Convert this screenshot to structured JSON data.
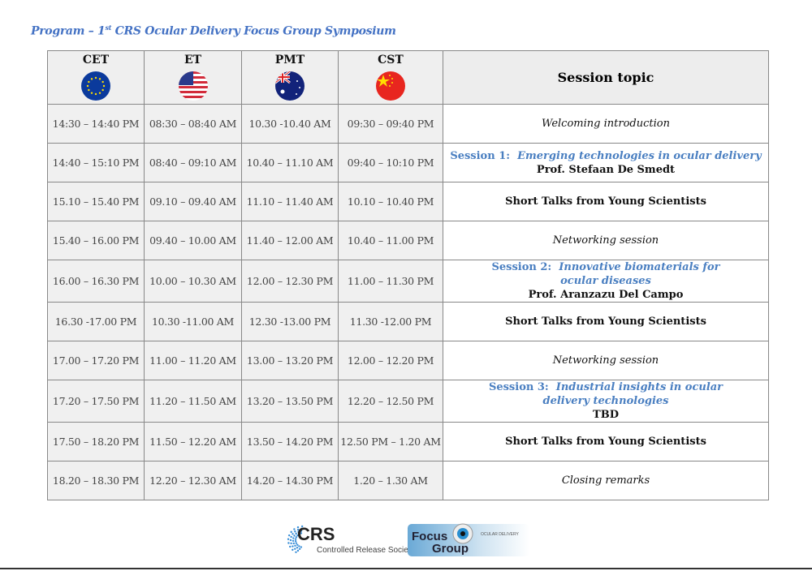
{
  "title": {
    "prefix": "Program – 1",
    "sup": "st",
    "rest": " CRS Ocular Delivery Focus Group Symposium"
  },
  "header": {
    "columns": [
      {
        "label": "CET",
        "icon": "eu-flag-icon"
      },
      {
        "label": "ET",
        "icon": "us-flag-icon"
      },
      {
        "label": "PMT",
        "icon": "australia-flag-icon"
      },
      {
        "label": "CST",
        "icon": "china-flag-icon"
      }
    ],
    "topic": "Session topic"
  },
  "rows": [
    {
      "times": [
        "14:30 – 14:40 PM",
        "08:30 – 08:40 AM",
        "10.30 -10.40 AM",
        "09:30 – 09:40 PM"
      ],
      "topic": "Welcoming introduction"
    },
    {
      "times": [
        "14:40 – 15:10 PM",
        "08:40 – 09:10 AM",
        "10.40 – 11.10 AM",
        "09:40 – 10:10 PM"
      ],
      "session": "Session 1:",
      "session_title": "Emerging technologies in ocular delivery",
      "speaker": "Prof. Stefaan De Smedt"
    },
    {
      "times": [
        "15.10 – 15.40 PM",
        "09.10 – 09.40 AM",
        "11.10  – 11.40 AM",
        "10.10 – 10.40 PM"
      ],
      "topic": "Short Talks from Young Scientists"
    },
    {
      "times": [
        "15.40 – 16.00 PM",
        "09.40 – 10.00 AM",
        "11.40 – 12.00 AM",
        "10.40 – 11.00 PM"
      ],
      "topic": "Networking session"
    },
    {
      "times": [
        "16.00 – 16.30 PM",
        "10.00 – 10.30 AM",
        "12.00 – 12.30 PM",
        "11.00 – 11.30 PM"
      ],
      "session": "Session 2:",
      "session_title": "Innovative biomaterials for ocular diseases",
      "speaker": "Prof. Aranzazu Del Campo"
    },
    {
      "times": [
        "16.30 -17.00 PM",
        "10.30 -11.00 AM",
        "12.30 -13.00 PM",
        "11.30 -12.00 PM"
      ],
      "topic": "Short Talks from Young Scientists"
    },
    {
      "times": [
        "17.00 – 17.20 PM",
        "11.00 – 11.20 AM",
        "13.00 – 13.20 PM",
        "12.00 – 12.20 PM"
      ],
      "topic": "Networking session"
    },
    {
      "times": [
        "17.20 – 17.50 PM",
        "11.20  – 11.50 AM",
        "13.20  – 13.50 PM",
        "12.20 – 12.50 PM"
      ],
      "session": "Session 3:",
      "session_title": "Industrial insights in ocular delivery technologies",
      "speaker": "TBD"
    },
    {
      "times": [
        "17.50 – 18.20 PM",
        "11.50 – 12.20 AM",
        "13.50 – 14.20 PM",
        "12.50 PM – 1.20 AM"
      ],
      "topic": "Short Talks from Young Scientists"
    },
    {
      "times": [
        "18.20 – 18.30 PM",
        "12.20 – 12.30 AM",
        "14.20 – 14.30 PM",
        "1.20 – 1.30 AM"
      ],
      "topic": "Closing remarks"
    }
  ],
  "logos": {
    "crs": "CRS",
    "crs_sub": "Controlled Release Society",
    "focus": "Focus",
    "group": "Group",
    "ocular": "OCULAR DELIVERY"
  }
}
